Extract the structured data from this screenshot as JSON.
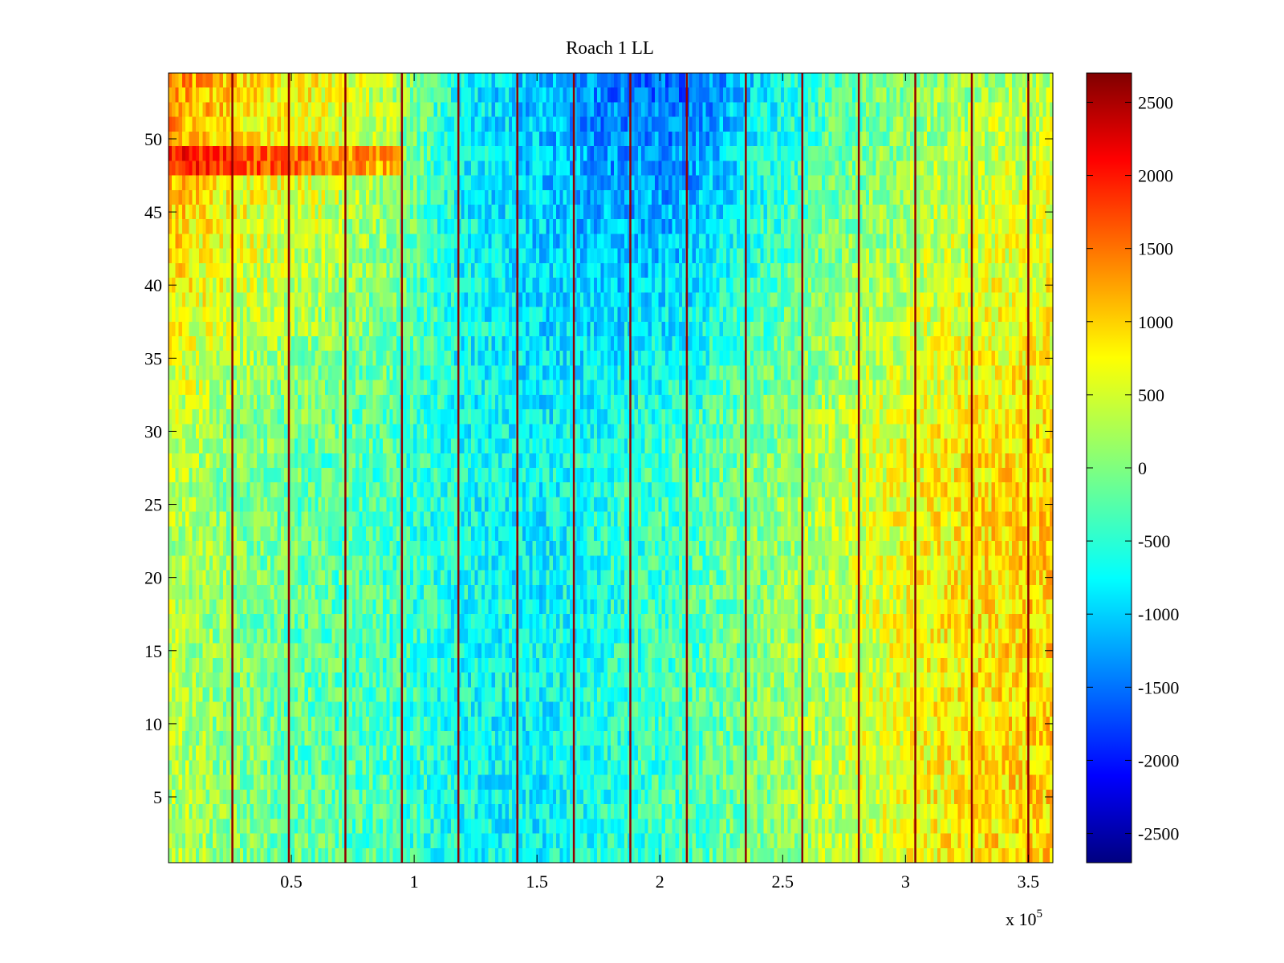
{
  "chart_data": {
    "type": "heatmap",
    "title": "Roach 1 LL",
    "xlabel": "",
    "ylabel": "",
    "x_multiplier_label": "x 10",
    "x_multiplier_exponent": "5",
    "xlim": [
      0.0,
      3.6
    ],
    "ylim": [
      0.5,
      54.5
    ],
    "x_ticks": [
      0.5,
      1,
      1.5,
      2,
      2.5,
      3,
      3.5
    ],
    "x_tick_labels": [
      "0.5",
      "1",
      "1.5",
      "2",
      "2.5",
      "3",
      "3.5"
    ],
    "y_ticks": [
      5,
      10,
      15,
      20,
      25,
      30,
      35,
      40,
      45,
      50
    ],
    "y_tick_labels": [
      "5",
      "10",
      "15",
      "20",
      "25",
      "30",
      "35",
      "40",
      "45",
      "50"
    ],
    "rows": 54,
    "colormap": "jet",
    "clim": [
      -2700,
      2700
    ],
    "colorbar_ticks": [
      2500,
      2000,
      1500,
      1000,
      500,
      0,
      -500,
      -1000,
      -1500,
      -2000,
      -2500
    ],
    "colorbar_tick_labels": [
      "2500",
      "2000",
      "1500",
      "1000",
      "500",
      "0",
      "-500",
      "-1000",
      "-1500",
      "-2000",
      "-2500"
    ],
    "vertical_line_positions": [
      0.26,
      0.49,
      0.72,
      0.95,
      1.18,
      1.42,
      1.65,
      1.88,
      2.11,
      2.35,
      2.58,
      2.81,
      3.04,
      3.27,
      3.5
    ],
    "vertical_line_value": 2600,
    "background_trend_x": [
      0.0,
      0.3,
      0.6,
      0.9,
      1.2,
      1.5,
      1.8,
      2.1,
      2.4,
      2.7,
      3.0,
      3.3,
      3.6
    ],
    "background_trend_lower_rows": [
      300,
      0,
      -200,
      -300,
      -600,
      -700,
      -500,
      -300,
      0,
      300,
      600,
      800,
      900
    ],
    "background_trend_upper_rows": [
      1300,
      900,
      700,
      300,
      -700,
      -1000,
      -1400,
      -1500,
      -800,
      -300,
      0,
      200,
      300
    ],
    "colors": {
      "background": "#ffffff",
      "axis": "#000000"
    }
  }
}
